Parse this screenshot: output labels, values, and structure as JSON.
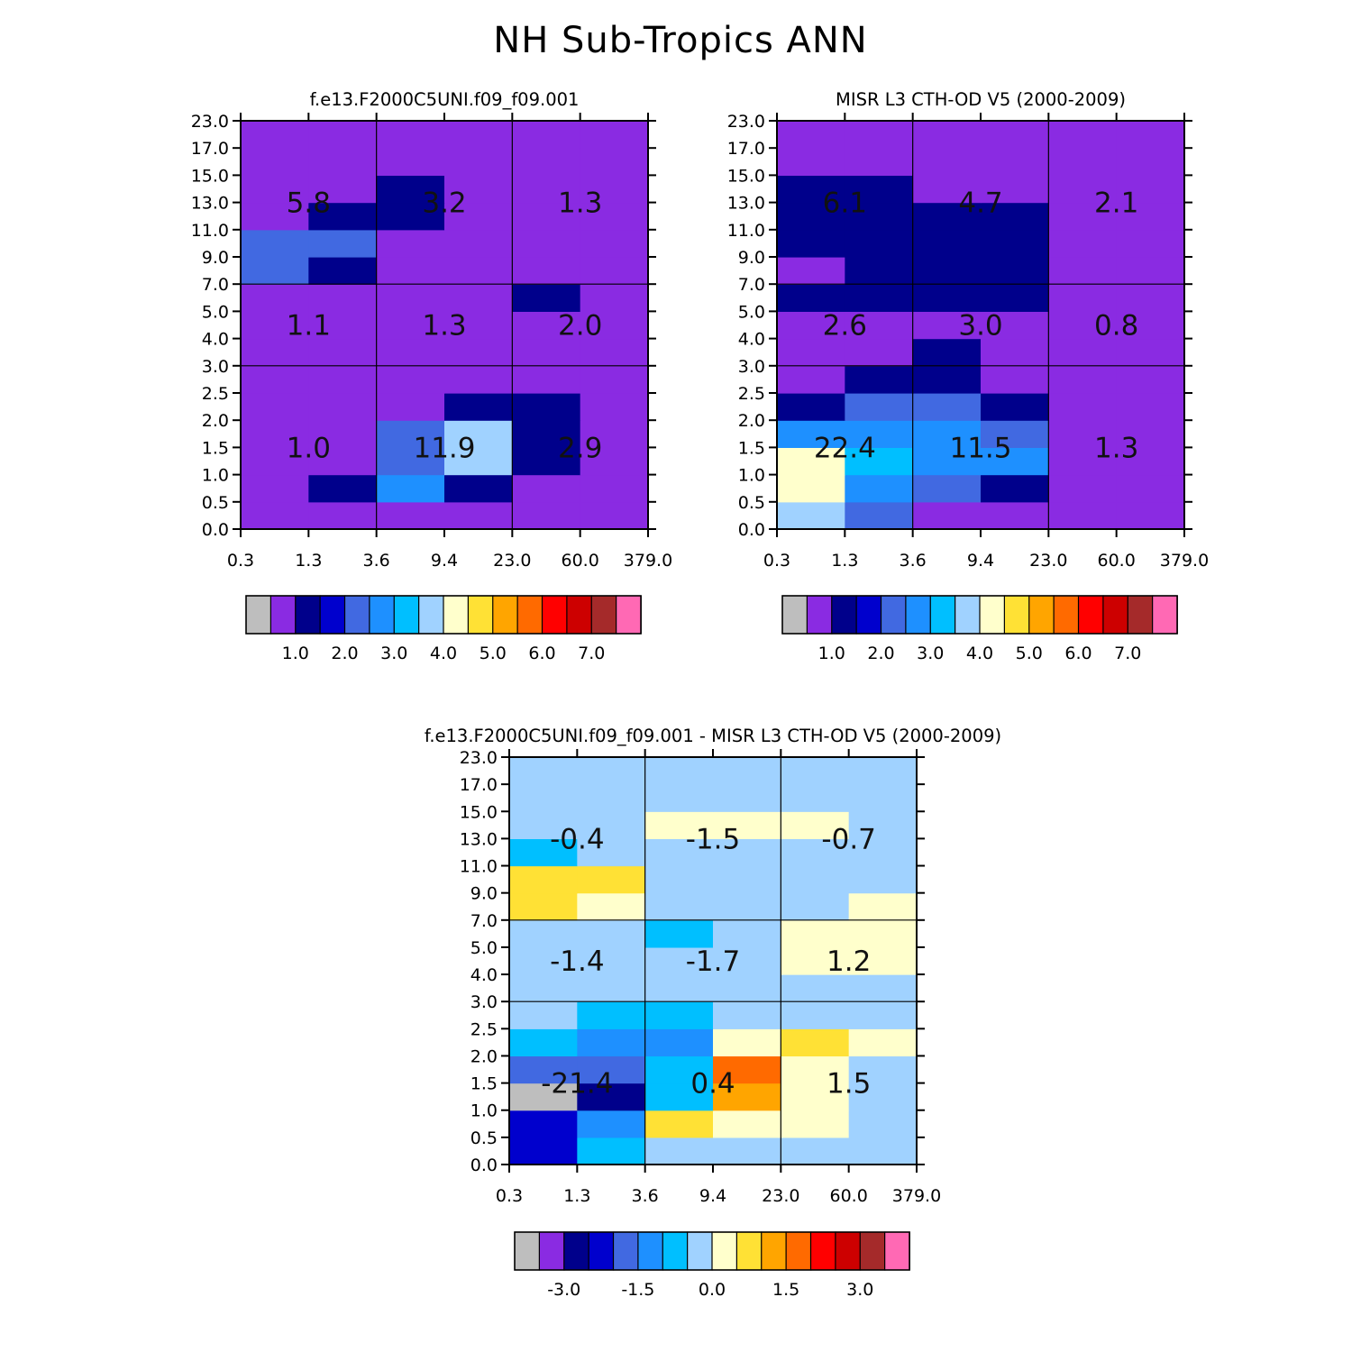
{
  "figure_title": "NH Sub-Tropics ANN",
  "chart_data": [
    {
      "type": "heatmap",
      "panel": "model",
      "title": "f.e13.F2000C5UNI.f09_f09.001",
      "xlabel": "",
      "ylabel": "",
      "x_tick_labels": [
        "0.3",
        "1.3",
        "3.6",
        "9.4",
        "23.0",
        "60.0",
        "379.0"
      ],
      "y_tick_labels": [
        "0.0",
        "0.5",
        "1.0",
        "1.5",
        "2.0",
        "2.5",
        "3.0",
        "4.0",
        "5.0",
        "7.0",
        "9.0",
        "11.0",
        "13.0",
        "15.0",
        "17.0",
        "23.0"
      ],
      "cell_values": [
        [
          0,
          0,
          0,
          0,
          0,
          0
        ],
        [
          0,
          0.8,
          2.2,
          0.8,
          0,
          0
        ],
        [
          0,
          0,
          1.8,
          3.2,
          0.8,
          0
        ],
        [
          0,
          0,
          1.8,
          3.2,
          0.8,
          0
        ],
        [
          0,
          0,
          0,
          0.8,
          0.8,
          0
        ],
        [
          0,
          0,
          0,
          0,
          0,
          0
        ],
        [
          0,
          0,
          0,
          0,
          0,
          0
        ],
        [
          0,
          0,
          0,
          0,
          0,
          0
        ],
        [
          0,
          0,
          0,
          0,
          0.8,
          0
        ],
        [
          1.6,
          0.8,
          0,
          0,
          0,
          0
        ],
        [
          1.6,
          1.6,
          0,
          0,
          0,
          0
        ],
        [
          0,
          0.8,
          0.8,
          0,
          0,
          0
        ],
        [
          0,
          0,
          0.8,
          0,
          0,
          0
        ],
        [
          0,
          0,
          0,
          0,
          0,
          0
        ],
        [
          0,
          0,
          0,
          0,
          0,
          0
        ]
      ],
      "box_totals": [
        {
          "label": "1.0",
          "tau": "thin",
          "height": "low"
        },
        {
          "label": "11.9",
          "tau": "medium",
          "height": "low"
        },
        {
          "label": "2.9",
          "tau": "thick",
          "height": "low"
        },
        {
          "label": "1.1",
          "tau": "thin",
          "height": "middle"
        },
        {
          "label": "1.3",
          "tau": "medium",
          "height": "middle"
        },
        {
          "label": "2.0",
          "tau": "thick",
          "height": "middle"
        },
        {
          "label": "5.8",
          "tau": "thin",
          "height": "high"
        },
        {
          "label": "3.2",
          "tau": "medium",
          "height": "high"
        },
        {
          "label": "1.3",
          "tau": "thick",
          "height": "high"
        }
      ],
      "colorbar": {
        "colors": [
          "#bebebe",
          "#8a2be2",
          "#00008b",
          "#0000cd",
          "#4169e1",
          "#1e90ff",
          "#00bfff",
          "#a0d2ff",
          "#ffffcc",
          "#ffe135",
          "#ffa500",
          "#ff6a00",
          "#ff0000",
          "#cd0000",
          "#a52a2a",
          "#ff69b4"
        ],
        "tick_labels": [
          "1.0",
          "2.0",
          "3.0",
          "4.0",
          "5.0",
          "6.0",
          "7.0"
        ],
        "levels": [
          0,
          0.5,
          1.0,
          1.5,
          2.0,
          2.5,
          3.0,
          3.5,
          4.0,
          4.5,
          5.0,
          5.5,
          6.0,
          6.5,
          7.0
        ]
      }
    },
    {
      "type": "heatmap",
      "panel": "observations",
      "title": "MISR L3 CTH-OD V5 (2000-2009)",
      "xlabel": "",
      "ylabel": "",
      "x_tick_labels": [
        "0.3",
        "1.3",
        "3.6",
        "9.4",
        "23.0",
        "60.0",
        "379.0"
      ],
      "y_tick_labels": [
        "0.0",
        "0.5",
        "1.0",
        "1.5",
        "2.0",
        "2.5",
        "3.0",
        "4.0",
        "5.0",
        "7.0",
        "9.0",
        "11.0",
        "13.0",
        "15.0",
        "17.0",
        "23.0"
      ],
      "cell_values": [
        [
          3.2,
          1.6,
          0,
          0,
          0,
          0
        ],
        [
          3.8,
          2.2,
          1.6,
          0.8,
          0,
          0
        ],
        [
          3.8,
          2.8,
          2.2,
          2.2,
          0,
          0
        ],
        [
          2.2,
          2.2,
          2.2,
          1.6,
          0,
          0
        ],
        [
          0.8,
          1.6,
          1.6,
          0.8,
          0,
          0
        ],
        [
          0,
          0.8,
          0.8,
          0,
          0,
          0
        ],
        [
          0,
          0,
          0.8,
          0,
          0,
          0
        ],
        [
          0,
          0,
          0,
          0,
          0,
          0
        ],
        [
          0.8,
          0.8,
          0.8,
          0.8,
          0,
          0
        ],
        [
          0,
          0.8,
          0.8,
          0.8,
          0,
          0
        ],
        [
          0.8,
          0.8,
          0.8,
          0.8,
          0,
          0
        ],
        [
          0.8,
          0.8,
          0.8,
          0.8,
          0,
          0
        ],
        [
          0.8,
          0.8,
          0,
          0,
          0,
          0
        ],
        [
          0,
          0,
          0,
          0,
          0,
          0
        ],
        [
          0,
          0,
          0,
          0,
          0,
          0
        ]
      ],
      "box_totals": [
        {
          "label": "22.4",
          "tau": "thin",
          "height": "low"
        },
        {
          "label": "11.5",
          "tau": "medium",
          "height": "low"
        },
        {
          "label": "1.3",
          "tau": "thick",
          "height": "low"
        },
        {
          "label": "2.6",
          "tau": "thin",
          "height": "middle"
        },
        {
          "label": "3.0",
          "tau": "medium",
          "height": "middle"
        },
        {
          "label": "0.8",
          "tau": "thick",
          "height": "middle"
        },
        {
          "label": "6.1",
          "tau": "thin",
          "height": "high"
        },
        {
          "label": "4.7",
          "tau": "medium",
          "height": "high"
        },
        {
          "label": "2.1",
          "tau": "thick",
          "height": "high"
        }
      ],
      "colorbar": {
        "colors": [
          "#bebebe",
          "#8a2be2",
          "#00008b",
          "#0000cd",
          "#4169e1",
          "#1e90ff",
          "#00bfff",
          "#a0d2ff",
          "#ffffcc",
          "#ffe135",
          "#ffa500",
          "#ff6a00",
          "#ff0000",
          "#cd0000",
          "#a52a2a",
          "#ff69b4"
        ],
        "tick_labels": [
          "1.0",
          "2.0",
          "3.0",
          "4.0",
          "5.0",
          "6.0",
          "7.0"
        ],
        "levels": [
          0,
          0.5,
          1.0,
          1.5,
          2.0,
          2.5,
          3.0,
          3.5,
          4.0,
          4.5,
          5.0,
          5.5,
          6.0,
          6.5,
          7.0
        ]
      }
    },
    {
      "type": "heatmap",
      "panel": "difference",
      "title": "f.e13.F2000C5UNI.f09_f09.001 - MISR L3 CTH-OD V5 (2000-2009)",
      "xlabel": "",
      "ylabel": "",
      "x_tick_labels": [
        "0.3",
        "1.3",
        "3.6",
        "9.4",
        "23.0",
        "60.0",
        "379.0"
      ],
      "y_tick_labels": [
        "0.0",
        "0.5",
        "1.0",
        "1.5",
        "2.0",
        "2.5",
        "3.0",
        "4.0",
        "5.0",
        "7.0",
        "9.0",
        "11.0",
        "13.0",
        "15.0",
        "17.0",
        "23.0"
      ],
      "cell_values": [
        [
          -2.5,
          -1.0,
          -0.3,
          -0.3,
          -0.3,
          -0.3
        ],
        [
          -2.5,
          -1.3,
          0.8,
          0.2,
          0.2,
          -0.3
        ],
        [
          -4.0,
          -2.8,
          -1.0,
          1.2,
          0.2,
          -0.3
        ],
        [
          -1.8,
          -1.8,
          -1.0,
          1.8,
          0.2,
          -0.3
        ],
        [
          -1.0,
          -1.3,
          -1.3,
          0.2,
          0.8,
          0.2
        ],
        [
          -0.3,
          -1.0,
          -1.0,
          -0.3,
          -0.3,
          -0.3
        ],
        [
          -0.3,
          -0.3,
          -0.3,
          -0.3,
          -0.3,
          -0.3
        ],
        [
          -0.3,
          -0.3,
          -0.3,
          -0.3,
          0.2,
          0.2
        ],
        [
          -0.3,
          -0.3,
          -1.0,
          -0.3,
          0.2,
          0.2
        ],
        [
          0.8,
          0.2,
          -0.3,
          -0.3,
          -0.3,
          0.2
        ],
        [
          0.8,
          0.8,
          -0.3,
          -0.3,
          -0.3,
          -0.3
        ],
        [
          -1.0,
          -0.3,
          -0.3,
          -0.3,
          -0.3,
          -0.3
        ],
        [
          -0.3,
          -0.3,
          0.2,
          0.2,
          0.2,
          -0.3
        ],
        [
          -0.3,
          -0.3,
          -0.3,
          -0.3,
          -0.3,
          -0.3
        ],
        [
          -0.3,
          -0.3,
          -0.3,
          -0.3,
          -0.3,
          -0.3
        ]
      ],
      "box_totals": [
        {
          "label": "-21.4",
          "tau": "thin",
          "height": "low"
        },
        {
          "label": "0.4",
          "tau": "medium",
          "height": "low"
        },
        {
          "label": "1.5",
          "tau": "thick",
          "height": "low"
        },
        {
          "label": "-1.4",
          "tau": "thin",
          "height": "middle"
        },
        {
          "label": "-1.7",
          "tau": "medium",
          "height": "middle"
        },
        {
          "label": "1.2",
          "tau": "thick",
          "height": "middle"
        },
        {
          "label": "-0.4",
          "tau": "thin",
          "height": "high"
        },
        {
          "label": "-1.5",
          "tau": "medium",
          "height": "high"
        },
        {
          "label": "-0.7",
          "tau": "thick",
          "height": "high"
        }
      ],
      "colorbar": {
        "colors": [
          "#bebebe",
          "#8a2be2",
          "#00008b",
          "#0000cd",
          "#4169e1",
          "#1e90ff",
          "#00bfff",
          "#a0d2ff",
          "#ffffcc",
          "#ffe135",
          "#ffa500",
          "#ff6a00",
          "#ff0000",
          "#cd0000",
          "#a52a2a",
          "#ff69b4"
        ],
        "tick_labels": [
          "-3.0",
          "-1.5",
          "0.0",
          "1.5",
          "3.0"
        ],
        "tick_label_edges": [
          2,
          5,
          8,
          11,
          14
        ]
      }
    }
  ]
}
